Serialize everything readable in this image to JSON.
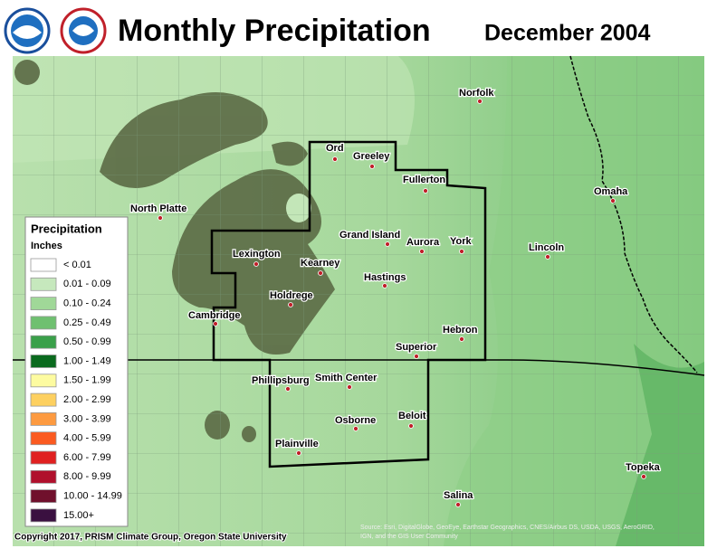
{
  "header": {
    "title": "Monthly Precipitation",
    "period": "December 2004"
  },
  "legend": {
    "title": "Precipitation",
    "units": "Inches",
    "items": [
      {
        "label": "< 0.01",
        "color": "#ffffff"
      },
      {
        "label": "0.01 - 0.09",
        "color": "#c6e8bd"
      },
      {
        "label": "0.10 - 0.24",
        "color": "#a0d898"
      },
      {
        "label": "0.25 - 0.49",
        "color": "#6fc070"
      },
      {
        "label": "0.50 - 0.99",
        "color": "#3aa04a"
      },
      {
        "label": "1.00 - 1.49",
        "color": "#0a6a1e"
      },
      {
        "label": "1.50 - 1.99",
        "color": "#fdfba0"
      },
      {
        "label": "2.00 - 2.99",
        "color": "#fdd060"
      },
      {
        "label": "3.00 - 3.99",
        "color": "#fd9a40"
      },
      {
        "label": "4.00 - 5.99",
        "color": "#fb5a20"
      },
      {
        "label": "6.00 - 7.99",
        "color": "#e02020"
      },
      {
        "label": "8.00 - 9.99",
        "color": "#b0102c"
      },
      {
        "label": "10.00 - 14.99",
        "color": "#70102c"
      },
      {
        "label": "15.00+",
        "color": "#3a1040"
      }
    ]
  },
  "cities": [
    "Ord",
    "Greeley",
    "Norfolk",
    "Fullerton",
    "North Platte",
    "Omaha",
    "Grand Island",
    "Aurora",
    "York",
    "Lincoln",
    "Lexington",
    "Kearney",
    "Hastings",
    "Holdrege",
    "Cambridge",
    "Hebron",
    "Superior",
    "Phillipsburg",
    "Smith Center",
    "Osborne",
    "Beloit",
    "Plainville",
    "Topeka",
    "Salina"
  ],
  "footer": {
    "copyright": "Copyright 2017, PRISM Climate Group, Oregon State University",
    "source": "Source: Esri, DigitalGlobe, GeoEye, Earthstar Geographics, CNES/Airbus DS, USDA, USGS, AeroGRID,",
    "source_line2": "IGN, and the GIS User Community"
  }
}
